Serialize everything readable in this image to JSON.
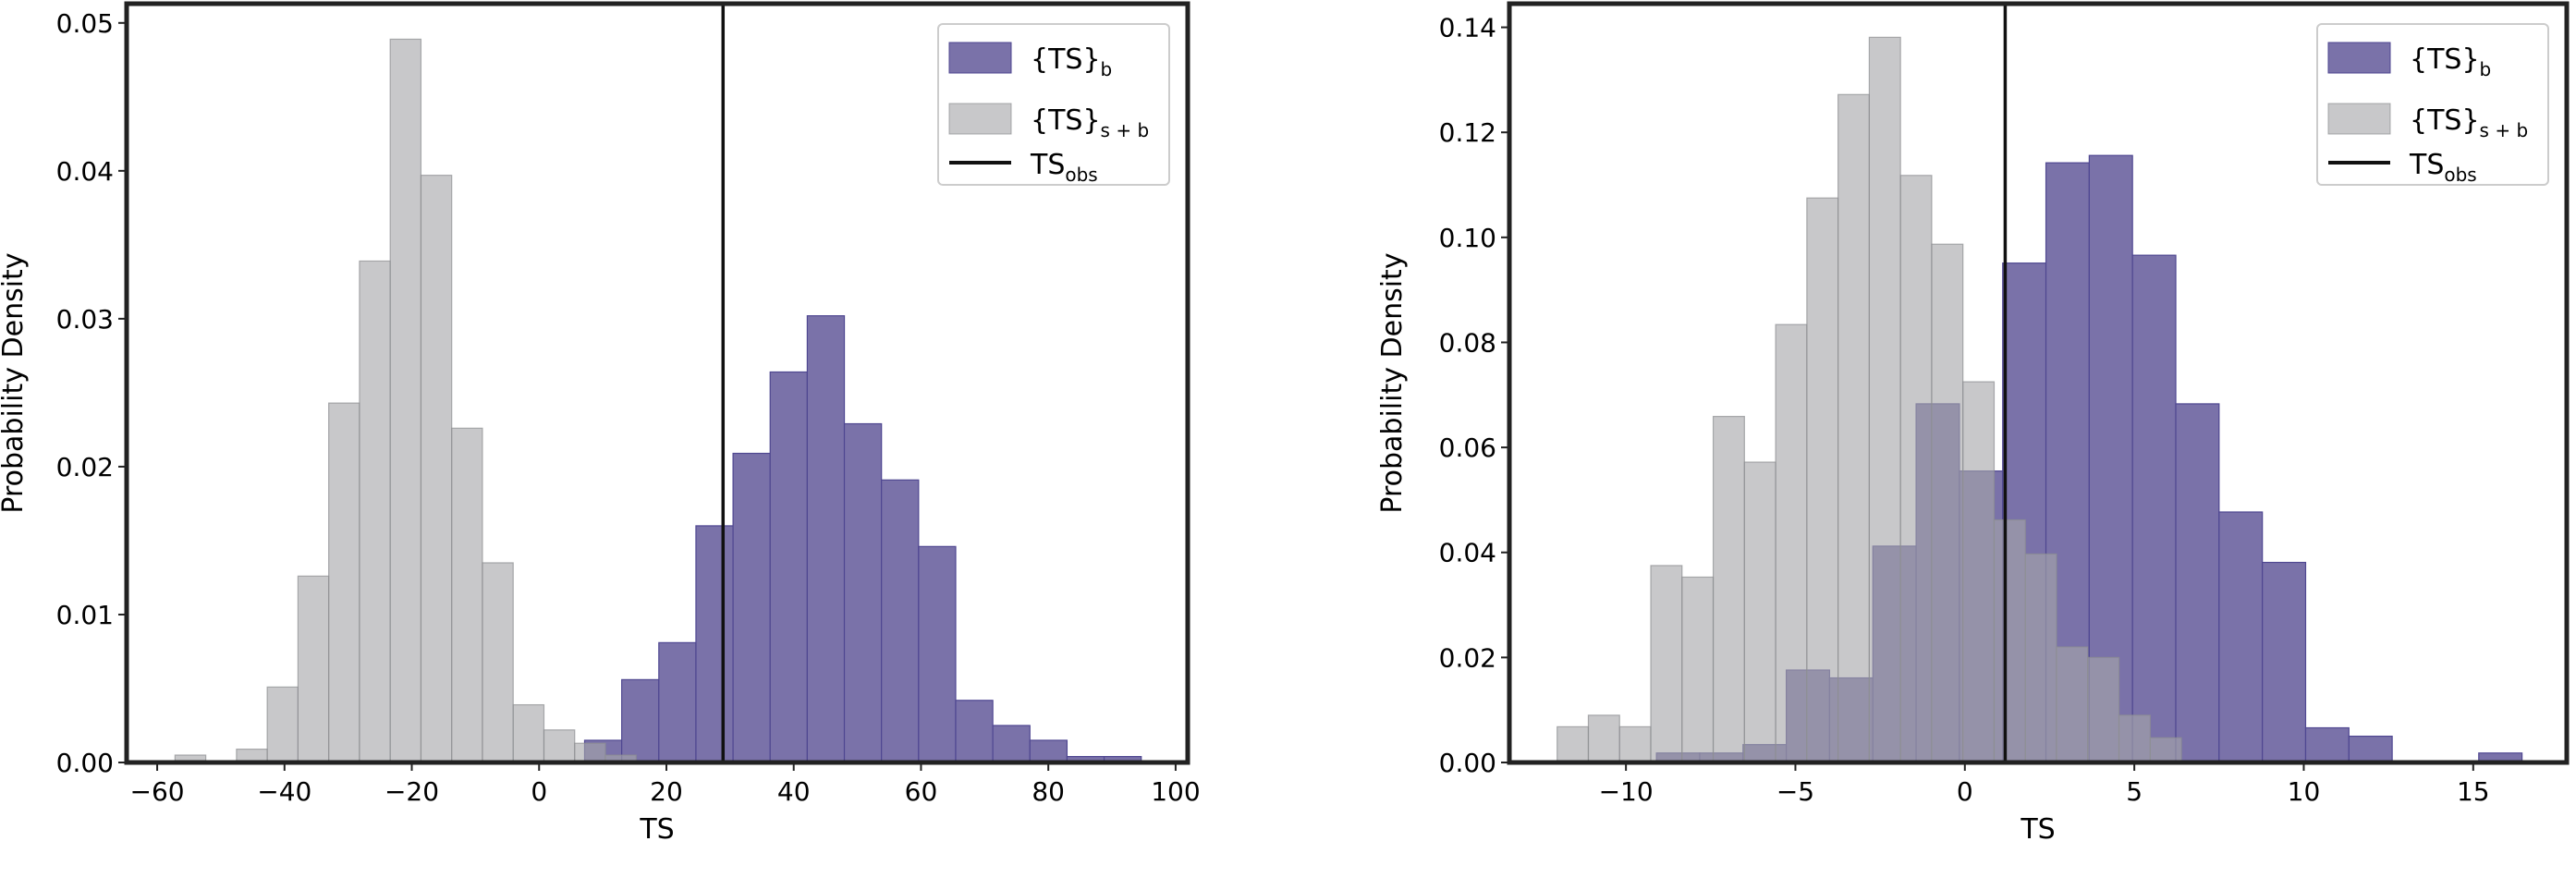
{
  "colors": {
    "b_fill": "#7a72a9",
    "b_edge": "#4f4791",
    "sb_fill": "rgba(166,167,170,0.62)",
    "sb_edge": "rgba(140,141,144,0.7)",
    "obs": "#111111"
  },
  "legend": {
    "b_main": "{TS}",
    "b_sub": "b",
    "sb_main": "{TS}",
    "sb_sub": "s + b",
    "obs_main": "TS",
    "obs_sub": "obs"
  },
  "chart_data": [
    {
      "type": "bar",
      "title": "",
      "xlabel": "TS",
      "ylabel": "Probability Density",
      "xlim": [
        -64.8,
        101.9
      ],
      "ylim": [
        0,
        0.0513
      ],
      "xticks": [
        -60,
        -40,
        -20,
        0,
        20,
        40,
        60,
        80,
        100
      ],
      "xtick_labels": [
        "−60",
        "−40",
        "−20",
        "0",
        "20",
        "40",
        "60",
        "80",
        "100"
      ],
      "yticks": [
        0,
        0.01,
        0.02,
        0.03,
        0.04,
        0.05
      ],
      "ytick_labels": [
        "0.00",
        "0.01",
        "0.02",
        "0.03",
        "0.04",
        "0.05"
      ],
      "legend_position": "top-right",
      "ts_obs": 28.9,
      "series": [
        {
          "name": "{TS}_b",
          "bin_start": 7.15,
          "bin_width": 5.83,
          "values": [
            0.0015,
            0.0056,
            0.0081,
            0.016,
            0.0209,
            0.0264,
            0.0302,
            0.0229,
            0.0191,
            0.0146,
            0.0042,
            0.0025,
            0.0015,
            0.0004,
            0.0004
          ]
        },
        {
          "name": "{TS}_s+b",
          "bin_start": -57.2,
          "bin_width": 4.83,
          "values": [
            0.0005,
            0,
            0.0009,
            0.0051,
            0.0126,
            0.0243,
            0.0339,
            0.0489,
            0.0397,
            0.0226,
            0.0135,
            0.0039,
            0.0022,
            0.0013,
            0.0005
          ]
        }
      ]
    },
    {
      "type": "bar",
      "title": "",
      "xlabel": "TS",
      "ylabel": "Probability Density",
      "xlim": [
        -13.44,
        17.76
      ],
      "ylim": [
        0,
        0.1445
      ],
      "xticks": [
        -10,
        -5,
        0,
        5,
        10,
        15
      ],
      "xtick_labels": [
        "−10",
        "−5",
        "0",
        "5",
        "10",
        "15"
      ],
      "yticks": [
        0,
        0.02,
        0.04,
        0.06,
        0.08,
        0.1,
        0.12,
        0.14
      ],
      "ytick_labels": [
        "0.00",
        "0.02",
        "0.04",
        "0.06",
        "0.08",
        "0.10",
        "0.12",
        "0.14"
      ],
      "legend_position": "top-right",
      "ts_obs": 1.19,
      "series": [
        {
          "name": "{TS}_b",
          "bin_start": -9.1,
          "bin_width": 1.277,
          "values": [
            0.0018,
            0.0018,
            0.0034,
            0.0176,
            0.0161,
            0.0412,
            0.0683,
            0.0555,
            0.0951,
            0.1142,
            0.1156,
            0.0966,
            0.0683,
            0.0477,
            0.0381,
            0.0066,
            0.005,
            0,
            0,
            0.0018
          ]
        },
        {
          "name": "{TS}_s+b",
          "bin_start": -12.03,
          "bin_width": 0.921,
          "values": [
            0.0068,
            0.009,
            0.0068,
            0.0375,
            0.0353,
            0.0659,
            0.0572,
            0.0834,
            0.1075,
            0.1272,
            0.1381,
            0.1118,
            0.0987,
            0.0725,
            0.0462,
            0.0397,
            0.022,
            0.02,
            0.009,
            0.0047
          ]
        }
      ]
    }
  ]
}
